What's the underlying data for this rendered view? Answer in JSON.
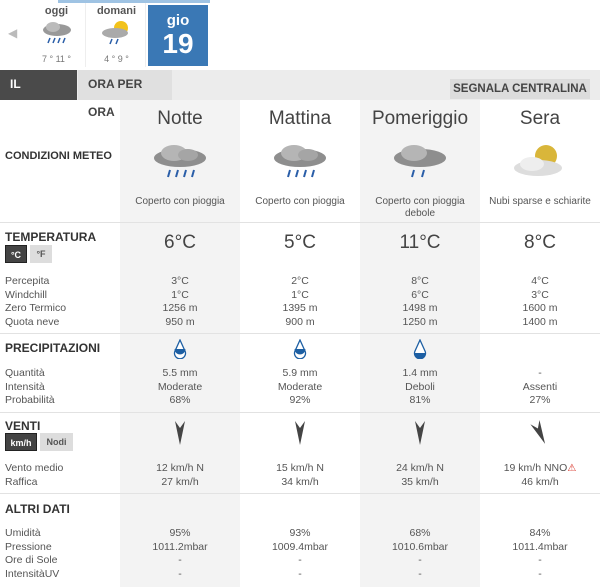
{
  "nav": {
    "prev": "◀",
    "days": [
      {
        "name": "oggi",
        "temps": "7 ° 11 °",
        "icon": "cloud-rain-icon"
      },
      {
        "name": "domani",
        "temps": "4 ° 9 °",
        "icon": "sun-cloud-rain-icon"
      }
    ],
    "selected": {
      "name": "gio",
      "date": "19"
    }
  },
  "tabs": {
    "day": "IL GIORNO",
    "hourly": "ORA PER ORA",
    "report": "SEGNALA CENTRALINA"
  },
  "accent": "#3a78b5",
  "conditions_label": "CONDIZIONI METEO",
  "columns": [
    {
      "name": "Notte",
      "icon": "cloud-rain-icon",
      "desc": "Coperto con pioggia",
      "temp": "6°C",
      "perc": "3°C",
      "wind": "1°C",
      "zero": "1256 m",
      "snow": "950 m",
      "precip_icon": "drop-full-icon",
      "qty": "5.5 mm",
      "int": "Moderate",
      "prob": "68%",
      "wind_dir": "N",
      "vento": "12 km/h  N",
      "raff": "27 km/h",
      "hum": "95%",
      "press": "1011.2mbar",
      "sun": "-",
      "uv": "-"
    },
    {
      "name": "Mattina",
      "icon": "cloud-rain-icon",
      "desc": "Coperto con pioggia",
      "temp": "5°C",
      "perc": "2°C",
      "wind": "1°C",
      "zero": "1395 m",
      "snow": "900 m",
      "precip_icon": "drop-full-icon",
      "qty": "5.9 mm",
      "int": "Moderate",
      "prob": "92%",
      "wind_dir": "N",
      "vento": "15 km/h N",
      "raff": "34 km/h",
      "hum": "93%",
      "press": "1009.4mbar",
      "sun": "-",
      "uv": "-"
    },
    {
      "name": "Pomeriggio",
      "icon": "cloud-light-rain-icon",
      "desc": "Coperto con pioggia debole",
      "temp": "11°C",
      "perc": "8°C",
      "wind": "6°C",
      "zero": "1498 m",
      "snow": "1250 m",
      "precip_icon": "drop-low-icon",
      "qty": "1.4 mm",
      "int": "Deboli",
      "prob": "81%",
      "wind_dir": "N",
      "vento": "24 km/h N",
      "raff": "35 km/h",
      "hum": "68%",
      "press": "1010.6mbar",
      "sun": "-",
      "uv": "-"
    },
    {
      "name": "Sera",
      "icon": "sun-cloud-icon",
      "desc": "Nubi sparse e schiarite",
      "temp": "8°C",
      "perc": "4°C",
      "wind": "3°C",
      "zero": "1600 m",
      "snow": "1400 m",
      "precip_icon": "",
      "qty": "-",
      "int": "Assenti",
      "prob": "27%",
      "wind_dir": "NNO",
      "vento": "19 km/h  NNO",
      "raff": "46 km/h",
      "hum": "84%",
      "press": "1011.4mbar",
      "sun": "-",
      "uv": "-",
      "warning": "⚠"
    }
  ],
  "temp": {
    "title": "TEMPERATURA",
    "unit_c": "°C",
    "unit_f": "°F",
    "labels": [
      "Percepita",
      "Windchill",
      "Zero Termico",
      "Quota neve"
    ]
  },
  "precip": {
    "title": "PRECIPITAZIONI",
    "labels": [
      "Quantità",
      "Intensità",
      "Probabilità"
    ]
  },
  "venti": {
    "title": "VENTI",
    "unit_kmh": "km/h",
    "unit_nodi": "Nodi",
    "labels": [
      "Vento medio",
      "Raffica"
    ]
  },
  "altri": {
    "title": "ALTRI DATI",
    "labels": [
      "Umidità",
      "Pressione",
      "Ore di Sole",
      "IntensitàUV"
    ]
  }
}
